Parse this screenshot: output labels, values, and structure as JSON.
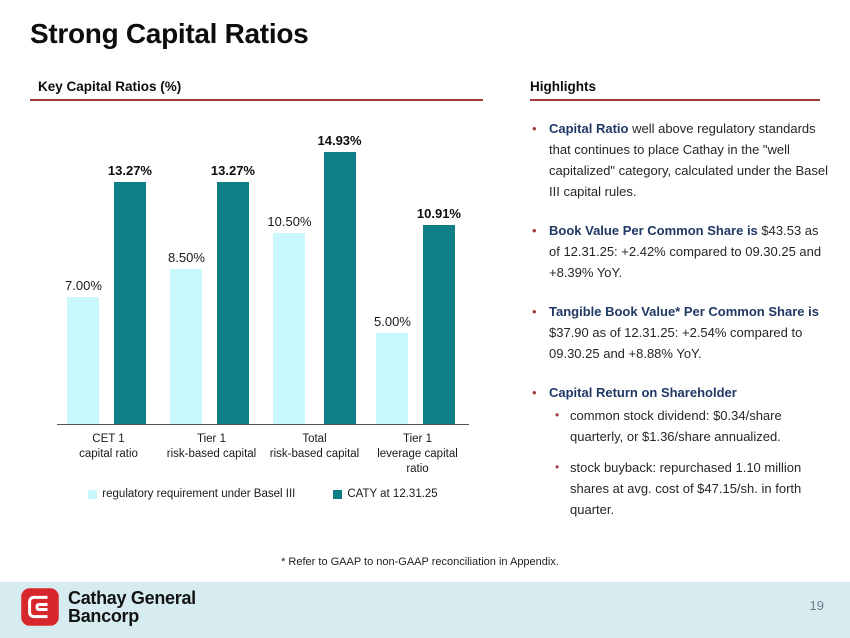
{
  "slide": {
    "title": "Strong Capital Ratios",
    "footnote": "* Refer to GAAP to non-GAAP reconciliation in Appendix.",
    "page_number": "19"
  },
  "colors": {
    "accent_rule_red": "#a43a3c",
    "bar_light": "#c9f9fc",
    "bar_dark": "#0e7e87",
    "lead_navy": "#1f3864",
    "bullet_red": "#9e3937",
    "footer_bg": "#d6ecf0",
    "logo_red": "#d7282e"
  },
  "chart": {
    "section_title": "Key Capital Ratios (%)"
  },
  "chart_data": {
    "type": "bar",
    "title": "Key Capital Ratios (%)",
    "categories": [
      "CET 1\ncapital ratio",
      "Tier 1\nrisk-based capital",
      "Total\nrisk-based capital",
      "Tier 1\nleverage capital ratio"
    ],
    "series": [
      {
        "name": "regulatory requirement under Basel III",
        "values": [
          7.0,
          8.5,
          10.5,
          5.0
        ],
        "labels": [
          "7.00%",
          "8.50%",
          "10.50%",
          "5.00%"
        ],
        "color": "#c9f9fc",
        "label_bold": false
      },
      {
        "name": "CATY at 12.31.25",
        "values": [
          13.27,
          13.27,
          14.93,
          10.91
        ],
        "labels": [
          "13.27%",
          "13.27%",
          "14.93%",
          "10.91%"
        ],
        "color": "#0e7e87",
        "label_bold": true
      }
    ],
    "xlabel": "",
    "ylabel": "",
    "ylim": [
      0,
      17.3
    ],
    "grid": false,
    "legend_position": "bottom",
    "data_labels": true
  },
  "highlights": {
    "section_title": "Highlights",
    "bullets": [
      {
        "lead": "Capital Ratio",
        "rest": " well above regulatory standards that continues to place Cathay in the \"well capitalized\" category, calculated under the Basel III capital rules."
      },
      {
        "lead": "Book Value Per Common Share is",
        "rest": " $43.53 as of 12.31.25: +2.42% compared to 09.30.25 and +8.39% YoY."
      },
      {
        "lead": "Tangible Book Value* Per Common Share is",
        "rest": " $37.90 as of 12.31.25: +2.54% compared to 09.30.25 and +8.88% YoY."
      },
      {
        "lead": "Capital Return on Shareholder",
        "rest": "",
        "sub": [
          "common stock dividend: $0.34/share quarterly, or $1.36/share annualized.",
          "stock buyback: repurchased 1.10 million shares at avg. cost of $47.15/sh. in forth quarter."
        ]
      }
    ]
  },
  "footer": {
    "logo_line1": "Cathay General",
    "logo_line2": "Bancorp"
  }
}
